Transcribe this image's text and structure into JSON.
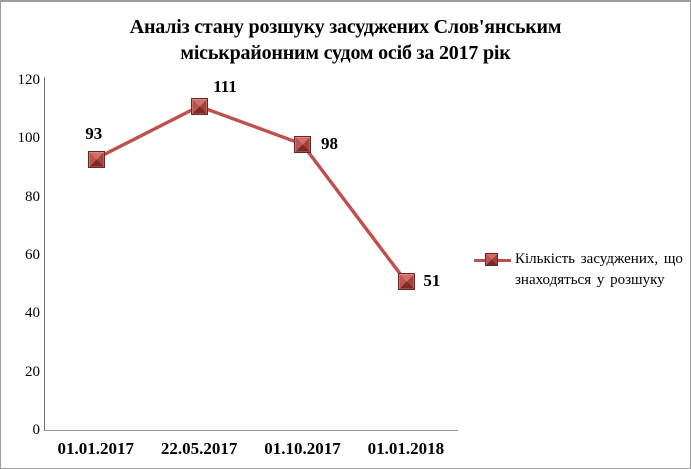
{
  "chart_data": {
    "type": "line",
    "title": "Аналіз стану розшуку засуджених Слов'янським міськрайонним судом осіб за 2017 рік",
    "title_lines": [
      "Аналіз стану розшуку засуджених Слов'янським",
      "міськрайонним судом осіб за 2017 рік"
    ],
    "categories": [
      "01.01.2017",
      "22.05.2017",
      "01.10.2017",
      "01.01.2018"
    ],
    "series": [
      {
        "name": "Кількість засуджених, що знаходяться у розшуку",
        "values": [
          93,
          111,
          98,
          51
        ]
      }
    ],
    "yticks": [
      120,
      100,
      80,
      60,
      40,
      20,
      0
    ],
    "ylim": [
      0,
      120
    ],
    "grid": false,
    "legend_position": "right",
    "legend_lines": [
      "Кількість  засуджених, що",
      "знаходяться у розшуку"
    ],
    "line_color": "#C0504D",
    "marker_color": "#A8403C",
    "marker_border_color": "#6E2523"
  }
}
